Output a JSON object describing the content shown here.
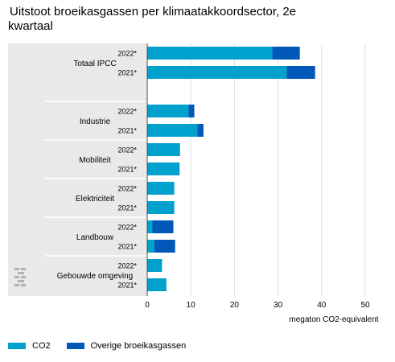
{
  "title_line1": "Uitstoot broeikasgassen per klimaatakkoordsector, 2e",
  "title_line2": "kwartaal",
  "colors": {
    "co2": "#00a1cd",
    "overig": "#0058b8",
    "panel": "#e9e9e9",
    "grid": "#e1e1e1"
  },
  "icon": "cbs-logo-icon",
  "chart_data": {
    "type": "bar",
    "orientation": "horizontal",
    "stacked": true,
    "xlabel": "megaton CO2-equivalent",
    "xlim": [
      0,
      50
    ],
    "xticks": [
      0,
      10,
      20,
      30,
      40,
      50
    ],
    "grid": true,
    "legend_position": "bottom-left",
    "groups": [
      "Totaal IPCC",
      "Industrie",
      "Mobiliteit",
      "Elektriciteit",
      "Landbouw",
      "Gebouwde omgeving"
    ],
    "rows": [
      {
        "group": "Totaal IPCC",
        "label": "2022*",
        "co2": 28.7,
        "overig": 6.3
      },
      {
        "group": "Totaal IPCC",
        "label": "2021*",
        "co2": 32.0,
        "overig": 6.5
      },
      {
        "group": "Industrie",
        "label": "2022*",
        "co2": 9.5,
        "overig": 1.3
      },
      {
        "group": "Industrie",
        "label": "2021*",
        "co2": 11.5,
        "overig": 1.4
      },
      {
        "group": "Mobiliteit",
        "label": "2022*",
        "co2": 7.4,
        "overig": 0.1
      },
      {
        "group": "Mobiliteit",
        "label": "2021*",
        "co2": 7.3,
        "overig": 0.1
      },
      {
        "group": "Elektriciteit",
        "label": "2022*",
        "co2": 6.2,
        "overig": 0.0
      },
      {
        "group": "Elektriciteit",
        "label": "2021*",
        "co2": 6.2,
        "overig": 0.0
      },
      {
        "group": "Landbouw",
        "label": "2022*",
        "co2": 1.2,
        "overig": 4.8
      },
      {
        "group": "Landbouw",
        "label": "2021*",
        "co2": 1.6,
        "overig": 4.8
      },
      {
        "group": "Gebouwde omgeving",
        "label": "2022*",
        "co2": 3.4,
        "overig": 0.0
      },
      {
        "group": "Gebouwde omgeving",
        "label": "2021*",
        "co2": 4.4,
        "overig": 0.0
      }
    ],
    "series": [
      {
        "key": "co2",
        "name": "CO2"
      },
      {
        "key": "overig",
        "name": "Overige broeikasgassen"
      }
    ]
  }
}
